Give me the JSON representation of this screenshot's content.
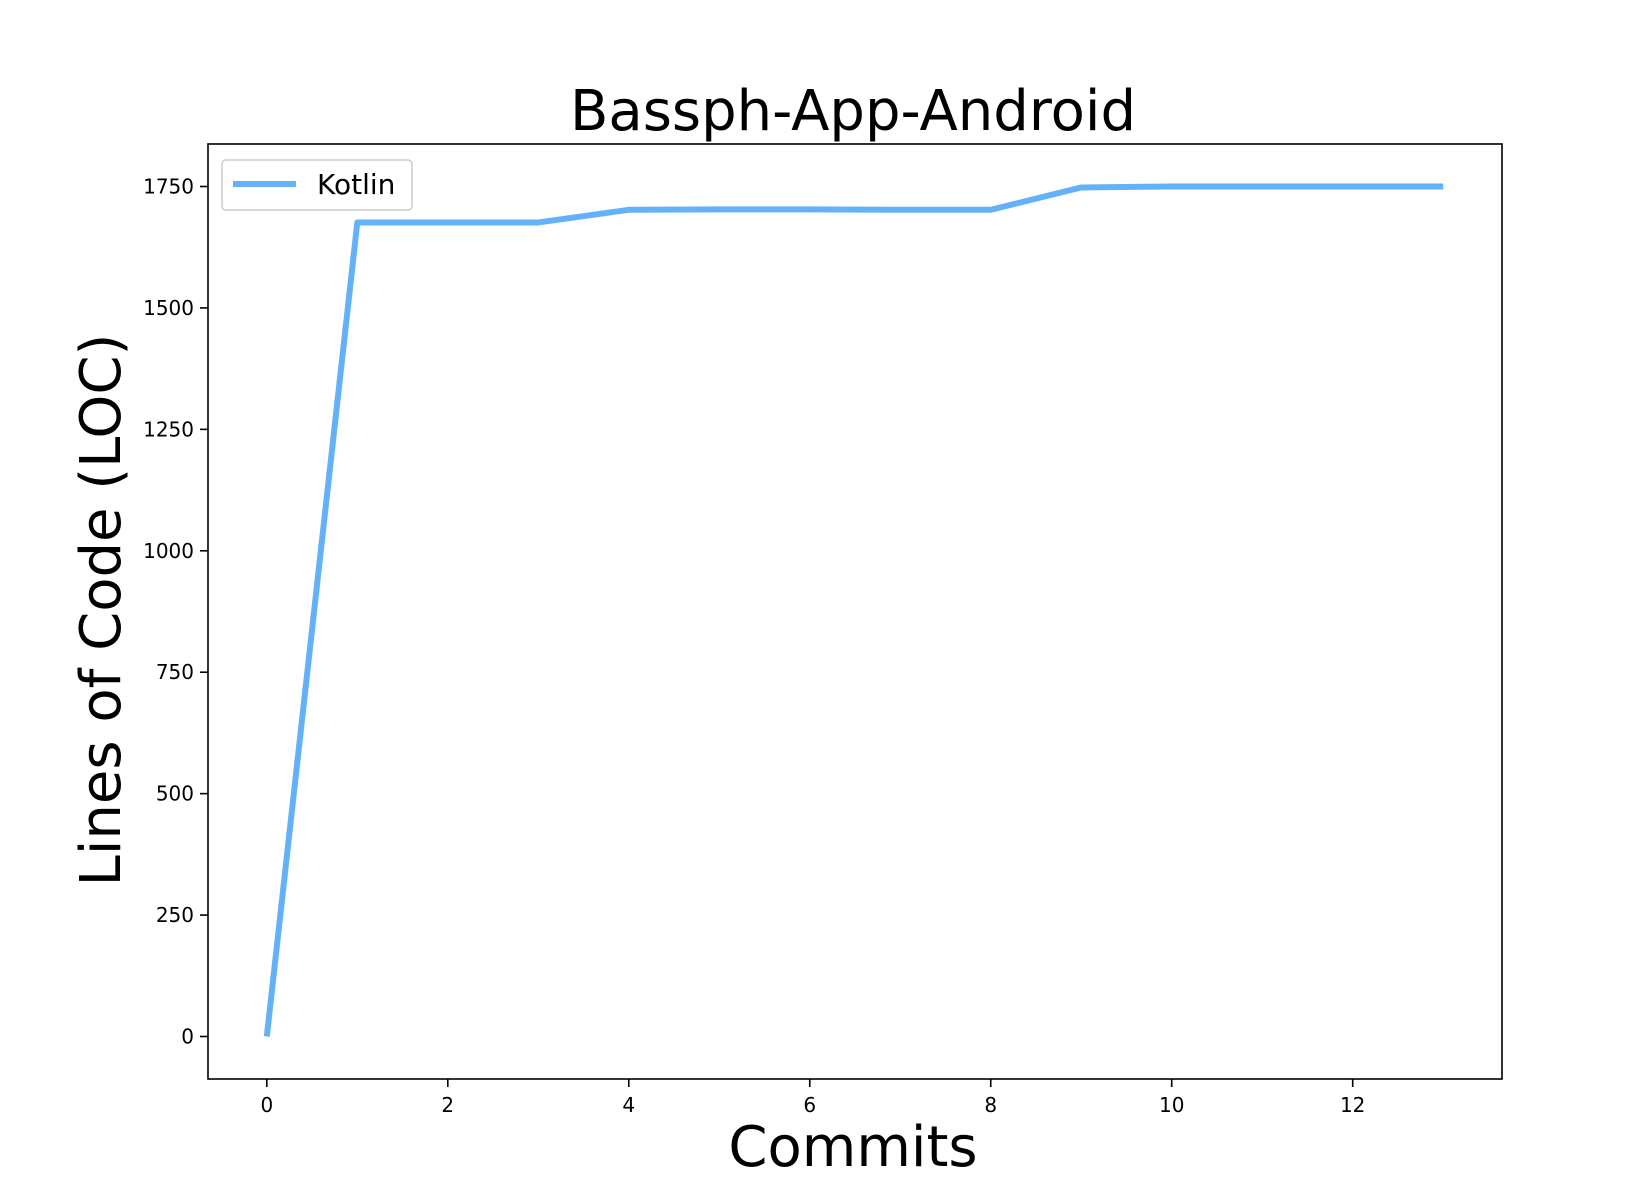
{
  "chart_data": {
    "type": "line",
    "title": "Bassph-App-Android",
    "xlabel": "Commits",
    "ylabel": "Lines of Code (LOC)",
    "xlim": [
      -0.65,
      13.65
    ],
    "ylim": [
      -87.5,
      1837.5
    ],
    "xticks": [
      0,
      2,
      4,
      6,
      8,
      10,
      12
    ],
    "yticks": [
      0,
      250,
      500,
      750,
      1000,
      1250,
      1500,
      1750
    ],
    "grid": false,
    "legend_position": "top-left",
    "series": [
      {
        "name": "Kotlin",
        "color": "#63b2f8",
        "x": [
          0,
          1,
          2,
          3,
          4,
          5,
          6,
          7,
          8,
          9,
          10,
          11,
          12,
          13
        ],
        "y": [
          0,
          1676,
          1676,
          1676,
          1702,
          1703,
          1703,
          1702,
          1702,
          1748,
          1750,
          1750,
          1750,
          1750
        ]
      }
    ]
  }
}
